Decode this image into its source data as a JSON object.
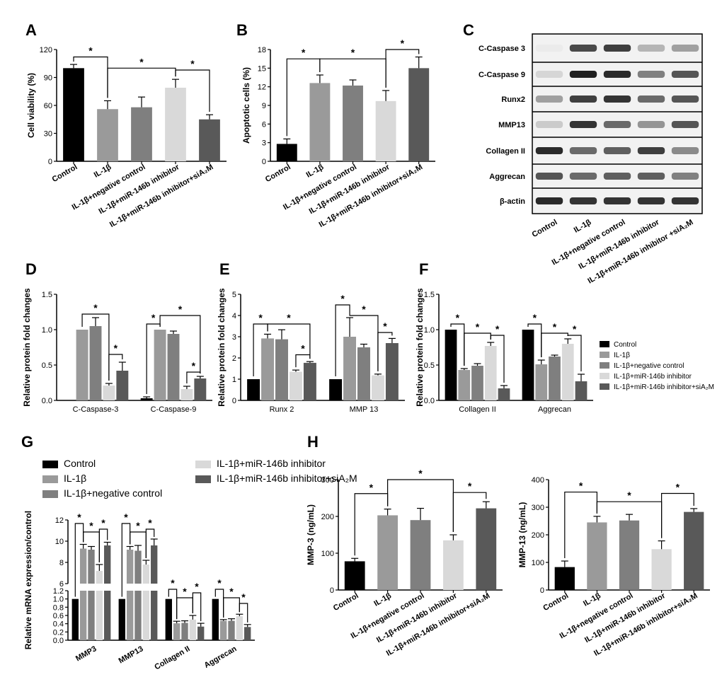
{
  "colors": {
    "control": "#000000",
    "il1b": "#9a9a9a",
    "negative_control": "#7f7f7f",
    "inhibitor": "#d9d9d9",
    "inhibitor_siA2M": "#595959"
  },
  "panel_letters": [
    "A",
    "B",
    "C",
    "D",
    "E",
    "F",
    "G",
    "H"
  ],
  "star": "*",
  "groups": [
    "Control",
    "IL-1β",
    "IL-1β+negative control",
    "IL-1β+miR-146b inhibitor",
    "IL-1β+miR-146b inhibitor+siA₂M"
  ],
  "chart_data": [
    {
      "id": "A",
      "type": "bar",
      "ylabel": "Cell viability (%)",
      "yticks": [
        "0",
        "30",
        "60",
        "90",
        "120"
      ],
      "ylim": [
        0,
        120
      ],
      "categories": [
        "Control",
        "IL-1β",
        "IL-1β+negative control",
        "IL-1β+miR-146b inhibitor",
        "IL-1β+miR-146b inhibitor+siA₂M"
      ],
      "values": [
        100,
        56,
        58,
        79,
        45
      ],
      "errors": [
        4,
        9,
        11,
        9,
        5
      ]
    },
    {
      "id": "B",
      "type": "bar",
      "ylabel": "Apoptotic cells (%)",
      "yticks": [
        "0",
        "3",
        "6",
        "9",
        "12",
        "15",
        "18"
      ],
      "ylim": [
        0,
        18
      ],
      "categories": [
        "Control",
        "IL-1β",
        "IL-1β+negative control",
        "IL-1β+miR-146b inhibitor",
        "IL-1β+miR-146b inhibitor+siA₂M"
      ],
      "values": [
        2.8,
        12.6,
        12.2,
        9.7,
        15.0
      ],
      "errors": [
        0.8,
        1.3,
        0.9,
        1.7,
        1.8
      ]
    },
    {
      "id": "D",
      "type": "bar",
      "ylabel": "Relative protein fold changes",
      "yticks": [
        "0.0",
        "0.5",
        "1.0",
        "1.5"
      ],
      "ylim": [
        0,
        1.5
      ],
      "categories": [
        "C-Caspase-3",
        "C-Caspase-9"
      ],
      "series": [
        {
          "values": [
            null,
            0.03
          ],
          "errors": [
            0,
            0.02
          ]
        },
        {
          "values": [
            1.0,
            1.0
          ],
          "errors": [
            0,
            0
          ]
        },
        {
          "values": [
            1.05,
            0.94
          ],
          "errors": [
            0.12,
            0.04
          ]
        },
        {
          "values": [
            0.21,
            0.16
          ],
          "errors": [
            0.03,
            0.04
          ]
        },
        {
          "values": [
            0.42,
            0.31
          ],
          "errors": [
            0.12,
            0.03
          ]
        }
      ]
    },
    {
      "id": "E",
      "type": "bar",
      "ylabel": "Relative protein fold changes",
      "yticks": [
        "0",
        "1",
        "2",
        "3",
        "4",
        "5"
      ],
      "ylim": [
        0,
        5
      ],
      "categories": [
        "Runx 2",
        "MMP 13"
      ],
      "series": [
        {
          "values": [
            1.0,
            1.0
          ],
          "errors": [
            0,
            0
          ]
        },
        {
          "values": [
            2.92,
            3.0
          ],
          "errors": [
            0.2,
            0.9
          ]
        },
        {
          "values": [
            2.88,
            2.5
          ],
          "errors": [
            0.45,
            0.15
          ]
        },
        {
          "values": [
            1.35,
            1.18
          ],
          "errors": [
            0.08,
            0.06
          ]
        },
        {
          "values": [
            1.77,
            2.7
          ],
          "errors": [
            0.06,
            0.22
          ]
        }
      ]
    },
    {
      "id": "F",
      "type": "bar",
      "ylabel": "Relative protein fold changes",
      "yticks": [
        "0.0",
        "0.5",
        "1.0",
        "1.5"
      ],
      "ylim": [
        0,
        1.5
      ],
      "categories": [
        "Collagen II",
        "Aggrecan"
      ],
      "series": [
        {
          "values": [
            1.0,
            1.0
          ],
          "errors": [
            0,
            0
          ]
        },
        {
          "values": [
            0.43,
            0.51
          ],
          "errors": [
            0.02,
            0.06
          ]
        },
        {
          "values": [
            0.49,
            0.62
          ],
          "errors": [
            0.03,
            0.02
          ]
        },
        {
          "values": [
            0.77,
            0.8
          ],
          "errors": [
            0.05,
            0.07
          ]
        },
        {
          "values": [
            0.17,
            0.27
          ],
          "errors": [
            0.04,
            0.1
          ]
        }
      ]
    },
    {
      "id": "G",
      "type": "bar",
      "ylabel": "Relative mRNA expression/control",
      "yticks_upper": [
        "6",
        "8",
        "10",
        "12"
      ],
      "ylim_upper": [
        6,
        12
      ],
      "yticks_lower": [
        "0.0",
        "0.2",
        "0.4",
        "0.6",
        "0.8",
        "1.0",
        "1.2"
      ],
      "ylim_lower": [
        0,
        1.2
      ],
      "categories": [
        "MMP3",
        "MMP13",
        "Collagen II",
        "Aggrecan"
      ],
      "series": [
        {
          "values": [
            1.0,
            1.0,
            1.0,
            1.0
          ],
          "errors": [
            0,
            0,
            0,
            0
          ]
        },
        {
          "values": [
            9.3,
            9.2,
            0.41,
            0.47
          ],
          "errors": [
            0.4,
            0.3,
            0.05,
            0.03
          ]
        },
        {
          "values": [
            9.2,
            9.1,
            0.42,
            0.47
          ],
          "errors": [
            0.3,
            0.5,
            0.05,
            0.05
          ]
        },
        {
          "values": [
            7.2,
            7.8,
            0.5,
            0.58
          ],
          "errors": [
            0.6,
            0.4,
            0.1,
            0.05
          ]
        },
        {
          "values": [
            9.6,
            9.6,
            0.33,
            0.32
          ],
          "errors": [
            0.3,
            0.6,
            0.08,
            0.06
          ]
        }
      ]
    },
    {
      "id": "H1",
      "type": "bar",
      "ylabel": "MMP-3 (ng/mL)",
      "yticks": [
        "0",
        "100",
        "200",
        "300"
      ],
      "ylim": [
        0,
        300
      ],
      "categories": [
        "Control",
        "IL-1β",
        "IL-1β+negative control",
        "IL-1β+miR-146b inhibitor",
        "IL-1β+miR-146b inhibitor+siA₂M"
      ],
      "values": [
        78,
        203,
        190,
        135,
        222
      ],
      "errors": [
        8,
        17,
        32,
        15,
        18
      ]
    },
    {
      "id": "H2",
      "type": "bar",
      "ylabel": "MMP-13 (ng/mL)",
      "yticks": [
        "0",
        "100",
        "200",
        "300",
        "400"
      ],
      "ylim": [
        0,
        400
      ],
      "categories": [
        "Control",
        "IL-1β",
        "IL-1β+negative control",
        "IL-1β+miR-146b inhibitor",
        "IL-1β+miR-146b inhibitor+siA₂M"
      ],
      "values": [
        83,
        245,
        252,
        148,
        283
      ],
      "errors": [
        22,
        22,
        22,
        30,
        12
      ]
    }
  ],
  "blot": {
    "rows": [
      "C-Caspase 3",
      "C-Caspase 9",
      "Runx2",
      "MMP13",
      "Collagen II",
      "Aggrecan",
      "β-actin"
    ],
    "lanes": [
      "Control",
      "IL-1β",
      "IL-1β+negative control",
      "IL-1β+miR-146b inhibitor",
      "IL-1β+miR-146b inhibitor +siA₂M"
    ],
    "intensity": [
      [
        0.0,
        0.75,
        0.8,
        0.25,
        0.35
      ],
      [
        0.1,
        0.95,
        0.9,
        0.5,
        0.7
      ],
      [
        0.35,
        0.8,
        0.85,
        0.6,
        0.7
      ],
      [
        0.15,
        0.85,
        0.6,
        0.4,
        0.7
      ],
      [
        0.9,
        0.6,
        0.65,
        0.8,
        0.45
      ],
      [
        0.7,
        0.6,
        0.65,
        0.65,
        0.5
      ],
      [
        0.9,
        0.85,
        0.85,
        0.85,
        0.85
      ]
    ]
  },
  "legend_F": {
    "entries": [
      "Control",
      "IL-1β",
      "IL-1β+negative control",
      "IL-1β+miR-146b inhibitor",
      "IL-1β+miR-146b inhibitor+siA₂M"
    ]
  },
  "legend_G": {
    "entries": [
      "Control",
      "IL-1β",
      "IL-1β+negative control",
      "IL-1β+miR-146b inhibitor",
      "IL-1β+miR-146b inhibitor+siA₂M"
    ]
  }
}
